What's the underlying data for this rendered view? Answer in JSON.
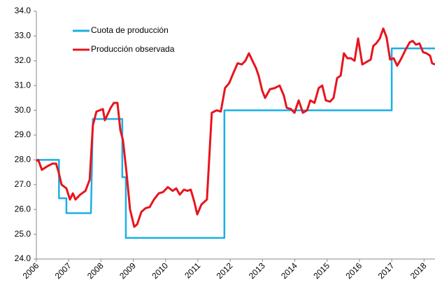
{
  "chart_data": {
    "type": "line",
    "xlim": [
      2006,
      2018.34
    ],
    "xticks": [
      2006,
      2007,
      2008,
      2009,
      2010,
      2011,
      2012,
      2013,
      2014,
      2015,
      2016,
      2017,
      2018
    ],
    "ylim": [
      24,
      34
    ],
    "yticks": [
      {
        "value": 24,
        "label": "24.0"
      },
      {
        "value": 25,
        "label": "25.0"
      },
      {
        "value": 26,
        "label": "26.0"
      },
      {
        "value": 27,
        "label": "27.0"
      },
      {
        "value": 28,
        "label": "28.0"
      },
      {
        "value": 29,
        "label": "29.0"
      },
      {
        "value": 30,
        "label": "30.0"
      },
      {
        "value": 31,
        "label": "31.0"
      },
      {
        "value": 32,
        "label": "32.0"
      },
      {
        "value": 33,
        "label": "33.0"
      },
      {
        "value": 34,
        "label": "34.0"
      }
    ],
    "grid": false,
    "legend": "upper left",
    "series": [
      {
        "name": "Cuota de producción",
        "color": "#1aafe6",
        "x": [
          2006.0,
          2006.7,
          2006.7,
          2006.93,
          2006.93,
          2007.69,
          2007.75,
          2008.66,
          2008.66,
          2008.77,
          2008.77,
          2011.82,
          2011.82,
          2017.0,
          2017.0,
          2018.34
        ],
        "values": [
          28.0,
          28.0,
          26.45,
          26.45,
          25.85,
          25.85,
          29.65,
          29.65,
          27.3,
          27.3,
          24.85,
          24.85,
          30.0,
          30.0,
          32.5,
          32.5
        ]
      },
      {
        "name": "Producción observada",
        "color": "#e8141e",
        "x": [
          2006.0,
          2006.06,
          2006.17,
          2006.35,
          2006.5,
          2006.61,
          2006.69,
          2006.78,
          2006.93,
          2007.04,
          2007.13,
          2007.21,
          2007.36,
          2007.52,
          2007.65,
          2007.75,
          2007.86,
          2008.06,
          2008.12,
          2008.3,
          2008.4,
          2008.51,
          2008.6,
          2008.68,
          2008.79,
          2008.9,
          2009.03,
          2009.12,
          2009.25,
          2009.38,
          2009.51,
          2009.64,
          2009.79,
          2009.92,
          2010.07,
          2010.22,
          2010.33,
          2010.44,
          2010.57,
          2010.68,
          2010.78,
          2010.89,
          2010.98,
          2011.11,
          2011.28,
          2011.43,
          2011.58,
          2011.71,
          2011.84,
          2011.97,
          2012.08,
          2012.23,
          2012.36,
          2012.47,
          2012.58,
          2012.69,
          2012.8,
          2012.88,
          2012.99,
          2013.08,
          2013.23,
          2013.38,
          2013.53,
          2013.66,
          2013.75,
          2013.88,
          2013.99,
          2014.12,
          2014.25,
          2014.38,
          2014.48,
          2014.61,
          2014.74,
          2014.85,
          2014.96,
          2015.09,
          2015.2,
          2015.31,
          2015.42,
          2015.52,
          2015.63,
          2015.74,
          2015.85,
          2015.96,
          2016.09,
          2016.22,
          2016.35,
          2016.43,
          2016.52,
          2016.63,
          2016.74,
          2016.84,
          2016.95,
          2017.06,
          2017.17,
          2017.3,
          2017.43,
          2017.56,
          2017.65,
          2017.75,
          2017.86,
          2017.97,
          2018.08,
          2018.19,
          2018.25,
          2018.34
        ],
        "values": [
          27.95,
          28.0,
          27.6,
          27.75,
          27.85,
          27.85,
          27.5,
          27.0,
          26.85,
          26.4,
          26.65,
          26.4,
          26.6,
          26.75,
          27.2,
          29.4,
          29.95,
          30.05,
          29.6,
          30.1,
          30.3,
          30.3,
          29.2,
          28.8,
          27.5,
          26.0,
          25.3,
          25.4,
          25.9,
          26.05,
          26.1,
          26.4,
          26.65,
          26.7,
          26.9,
          26.75,
          26.85,
          26.6,
          26.8,
          26.75,
          26.8,
          26.3,
          25.8,
          26.2,
          26.4,
          29.9,
          30.0,
          29.95,
          30.9,
          31.1,
          31.45,
          31.9,
          31.85,
          32.0,
          32.3,
          32.0,
          31.7,
          31.4,
          30.8,
          30.5,
          30.85,
          30.9,
          31.0,
          30.6,
          30.1,
          30.05,
          29.9,
          30.4,
          29.9,
          30.0,
          30.4,
          30.3,
          30.9,
          31.0,
          30.4,
          30.35,
          30.5,
          31.3,
          31.4,
          32.3,
          32.1,
          32.1,
          32.0,
          32.9,
          31.85,
          31.95,
          32.05,
          32.6,
          32.7,
          32.9,
          33.3,
          32.95,
          32.05,
          32.1,
          31.8,
          32.1,
          32.45,
          32.75,
          32.8,
          32.65,
          32.7,
          32.35,
          32.3,
          32.2,
          31.9,
          31.85
        ]
      }
    ]
  }
}
